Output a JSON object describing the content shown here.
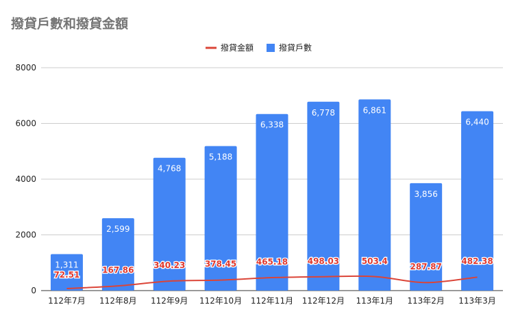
{
  "chart_data": {
    "type": "bar",
    "title": "撥貸戶數和撥貸金額",
    "categories": [
      "112年7月",
      "112年8月",
      "112年9月",
      "112年10月",
      "112年11月",
      "112年12月",
      "113年1月",
      "113年2月",
      "113年3月"
    ],
    "series": [
      {
        "name": "撥貸戶數",
        "type": "bar",
        "color": "#4285f4",
        "values": [
          1311,
          2599,
          4768,
          5188,
          6338,
          6778,
          6861,
          3856,
          6440
        ],
        "labels": [
          "1,311",
          "2,599",
          "4,768",
          "5,188",
          "6,338",
          "6,778",
          "6,861",
          "3,856",
          "6,440"
        ]
      },
      {
        "name": "撥貸金額",
        "type": "line",
        "color": "#db4437",
        "values": [
          72.51,
          167.86,
          340.23,
          378.45,
          465.18,
          498.03,
          503.4,
          287.87,
          482.38
        ],
        "labels": [
          "72.51",
          "167.86",
          "340.23",
          "378.45",
          "465.18",
          "498.03",
          "503.4",
          "287.87",
          "482.38"
        ]
      }
    ],
    "ylim": [
      0,
      8000
    ],
    "yticks": [
      "0",
      "2000",
      "4000",
      "6000",
      "8000"
    ],
    "legend_position": "top-center",
    "grid": true,
    "xlabel": "",
    "ylabel": ""
  }
}
